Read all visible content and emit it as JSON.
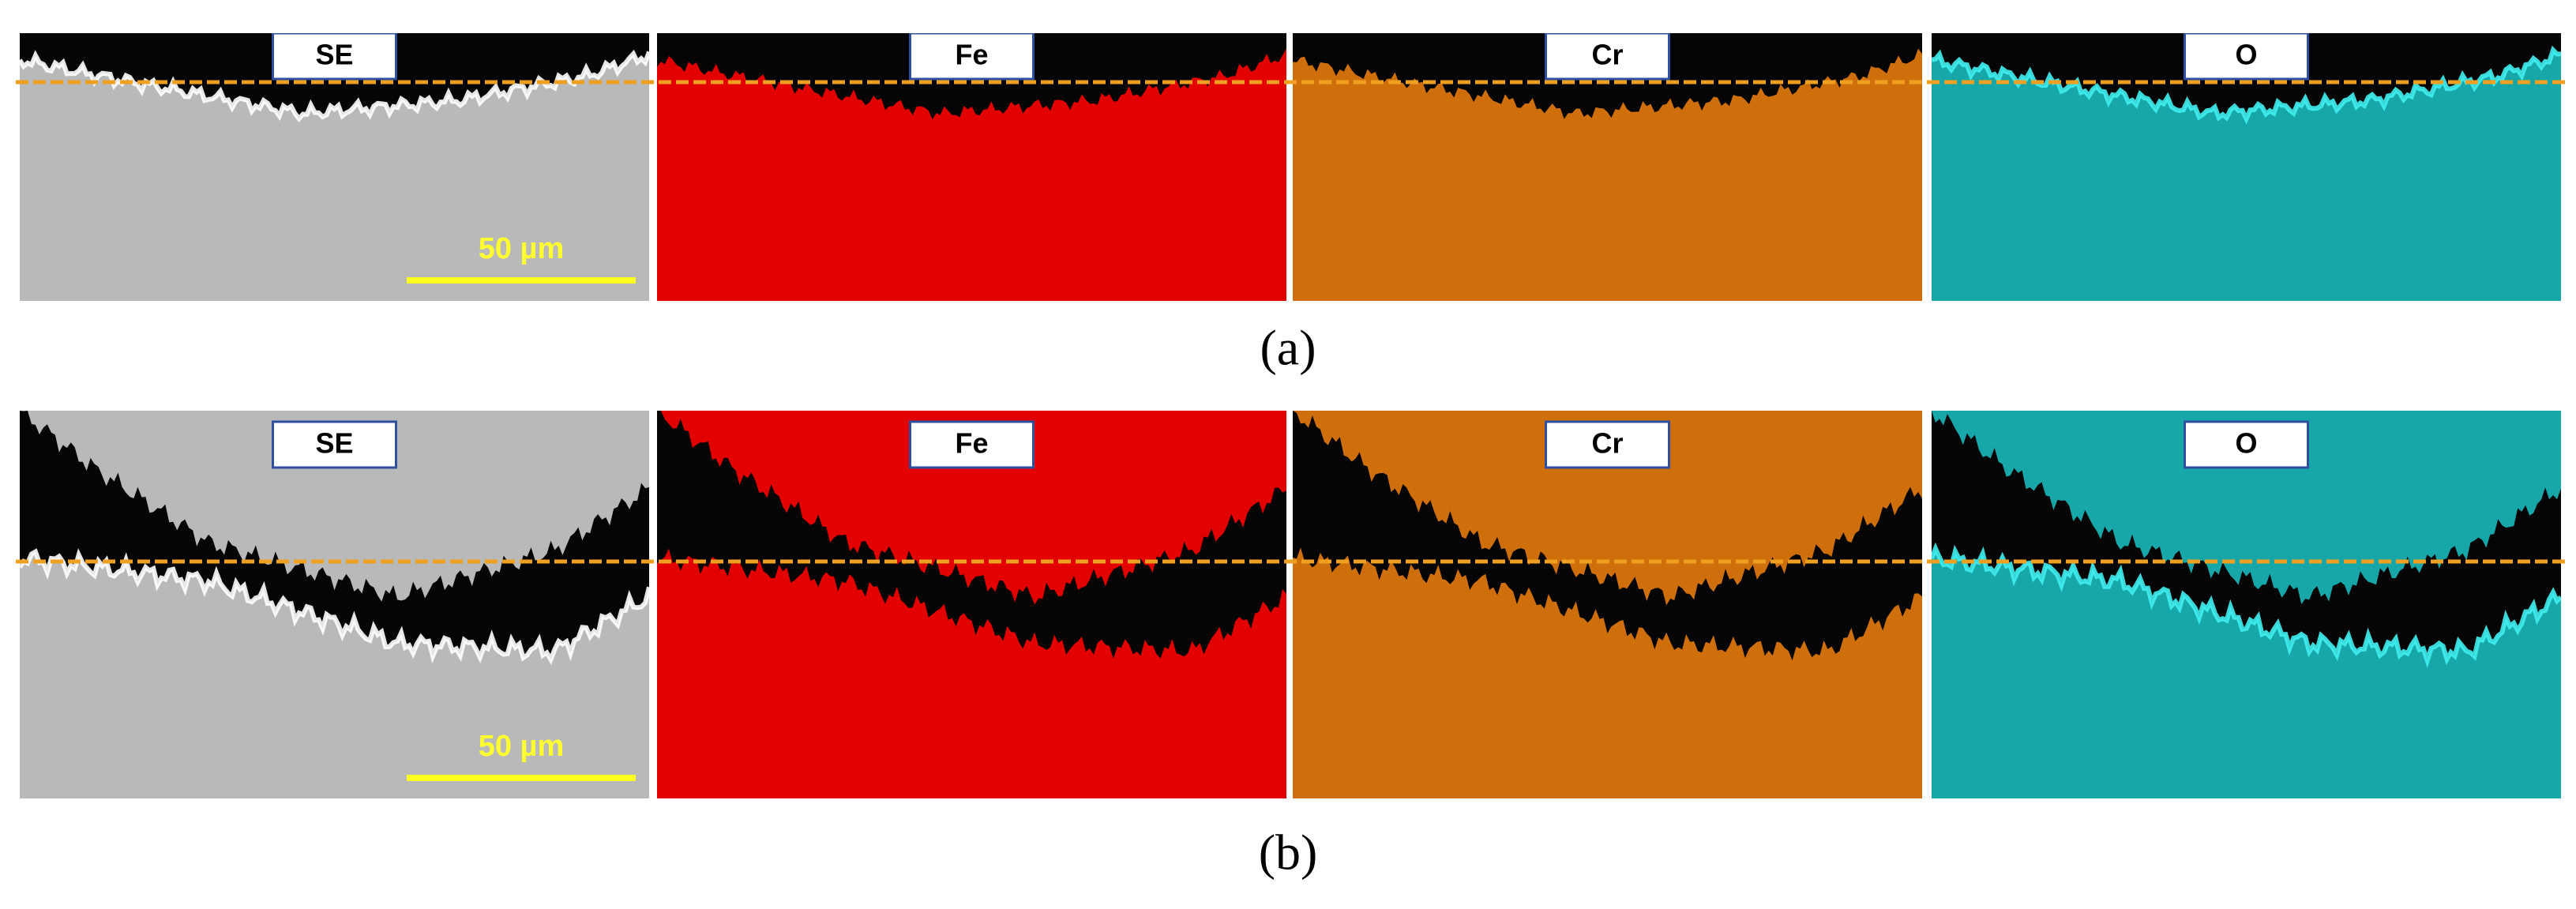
{
  "rows": [
    {
      "caption": "(a)",
      "scale_bar": "50 µm",
      "panels": [
        {
          "label": "SE"
        },
        {
          "label": "Fe"
        },
        {
          "label": "Cr"
        },
        {
          "label": "O"
        }
      ]
    },
    {
      "caption": "(b)",
      "scale_bar": "50 µm",
      "panels": [
        {
          "label": "SE"
        },
        {
          "label": "Fe"
        },
        {
          "label": "Cr"
        },
        {
          "label": "O"
        }
      ]
    }
  ]
}
